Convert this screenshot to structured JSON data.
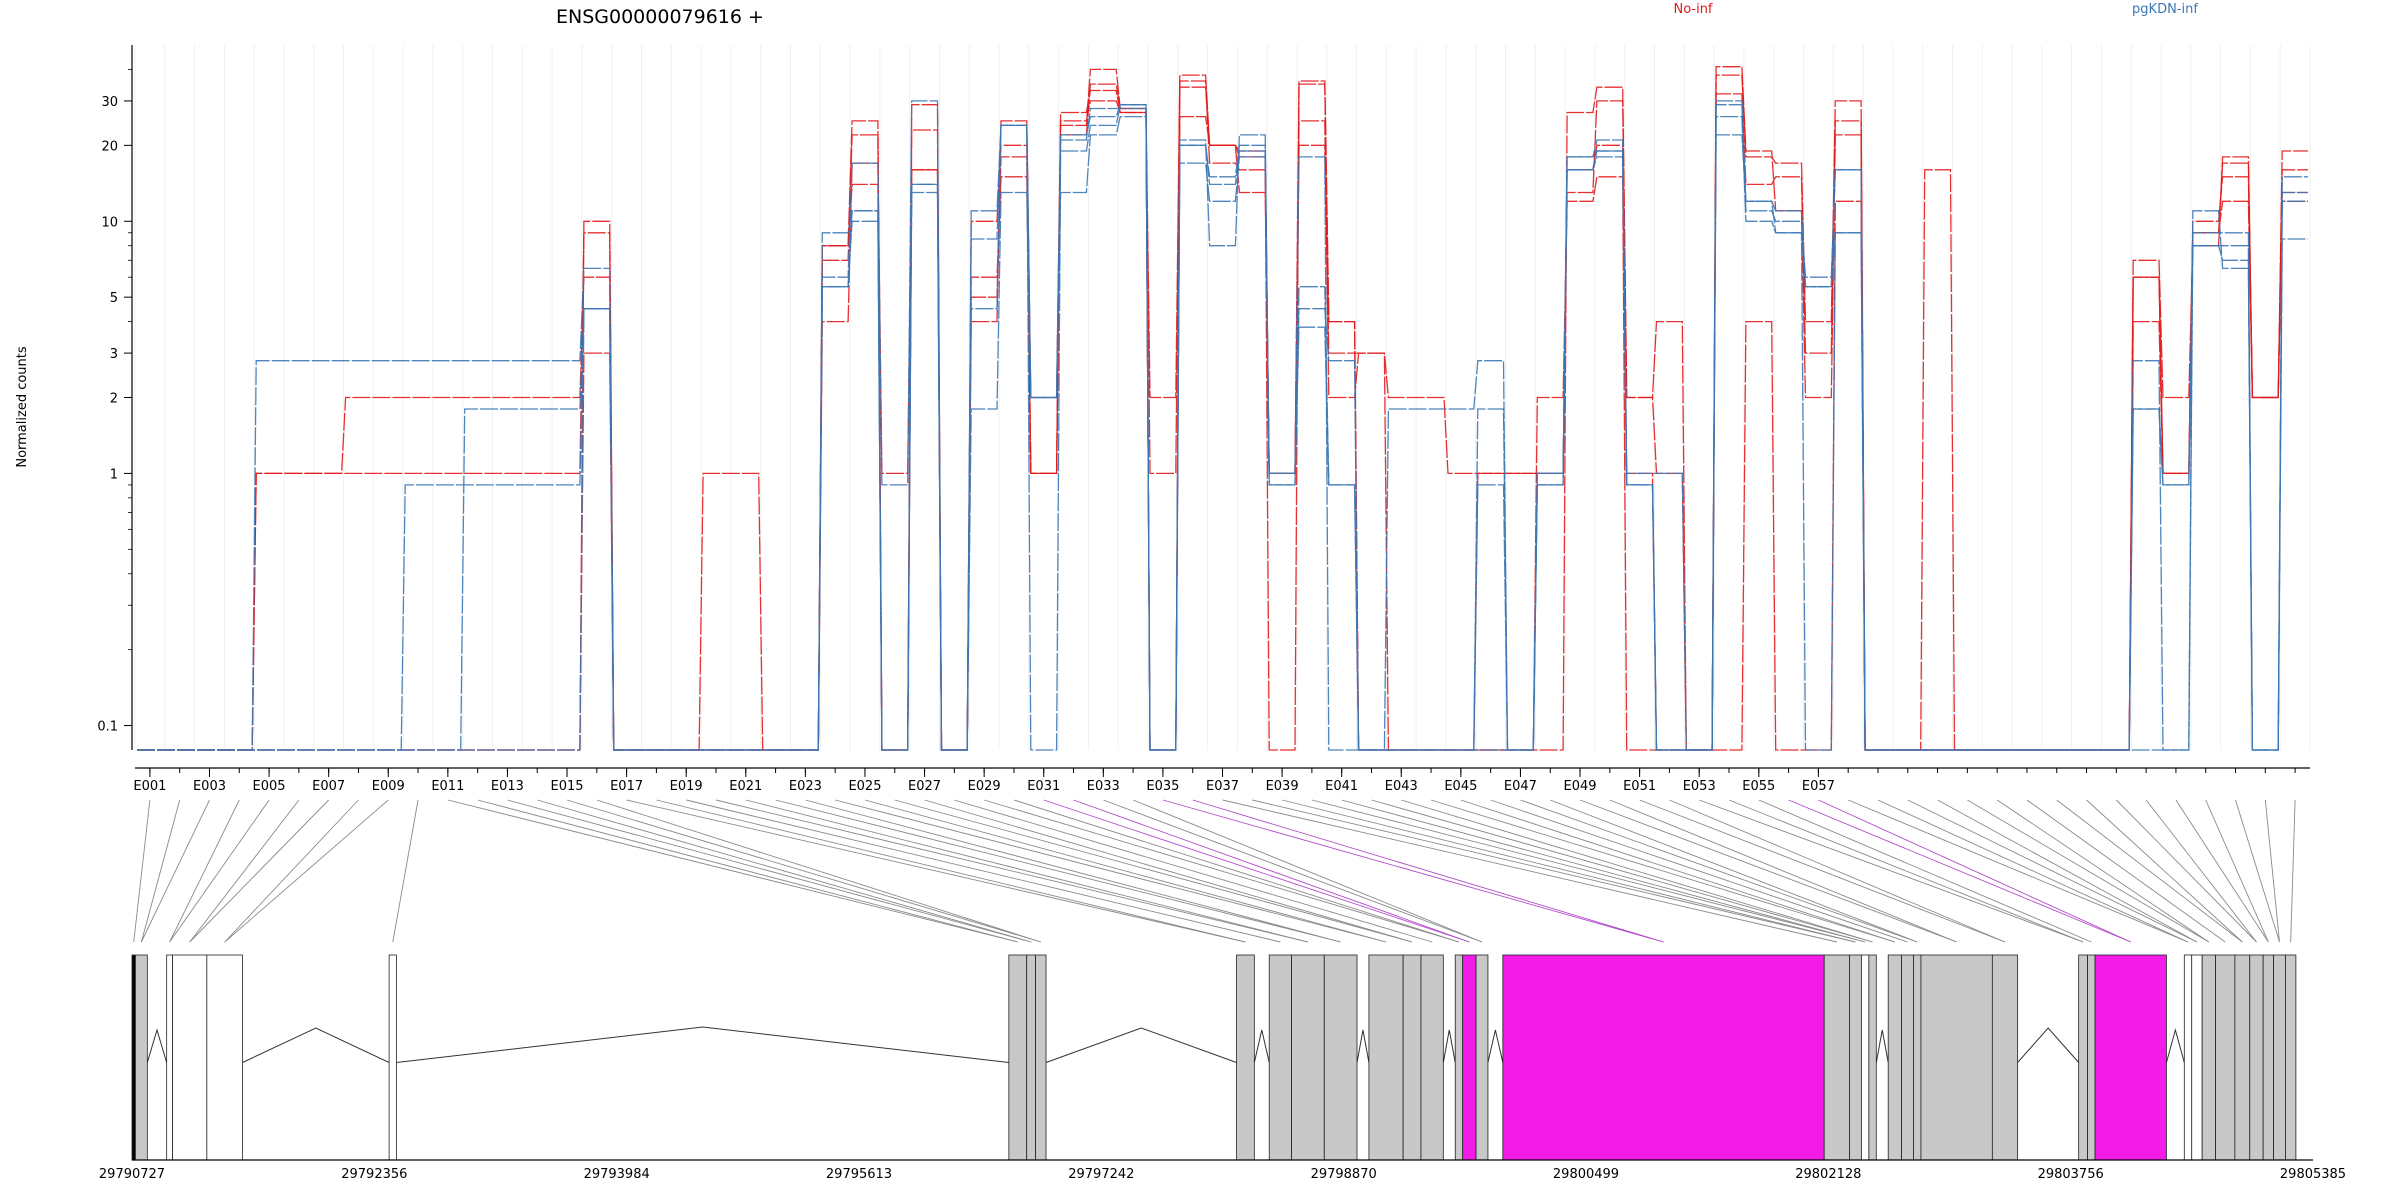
{
  "chart_data": {
    "type": "line",
    "title": "ENSG00000079616 +",
    "ylabel": "Normalized counts",
    "xlabel": "",
    "y_scale": "log",
    "ylim": [
      0.08,
      50
    ],
    "y_ticks": [
      0.1,
      1,
      2,
      3,
      5,
      10,
      20,
      30
    ],
    "y_tick_labels": [
      "0.1",
      "1",
      "2",
      "3",
      "5",
      "10",
      "20",
      "30"
    ],
    "legend_placement": "top",
    "grid": true,
    "exon_labels": [
      "E001",
      "E003",
      "E005",
      "E007",
      "E009",
      "E011",
      "E013",
      "E015",
      "E017",
      "E019",
      "E021",
      "E023",
      "E025",
      "E027",
      "E029",
      "E031",
      "E033",
      "E035",
      "E037",
      "E039",
      "E041",
      "E043",
      "E045",
      "E047",
      "E049",
      "E051",
      "E053",
      "E055",
      "E057"
    ],
    "series": [
      {
        "name": "No-inf",
        "color": "#e31a1c",
        "samples": [
          [
            0.08,
            0.08,
            0.08,
            0.08,
            1,
            1,
            1,
            1,
            1,
            1,
            1,
            1,
            1,
            1,
            1,
            9,
            0.08,
            0.08,
            0.08,
            1,
            1,
            0.08,
            0.08,
            8,
            25,
            0.08,
            29,
            0.08,
            10,
            20,
            1,
            24,
            40,
            28,
            0.08,
            34,
            20,
            18,
            0.08,
            35,
            4,
            0.08,
            0.08,
            0.08,
            0.08,
            0.08,
            0.08,
            2,
            12,
            15,
            0.08,
            0.08,
            0.08,
            0.08,
            4,
            0.08,
            0.08,
            12,
            0.08,
            0.08,
            16,
            0.08,
            0.08,
            0.08,
            0.08,
            0.08,
            0.08,
            6,
            1,
            9,
            12,
            2,
            16
          ],
          [
            0.08,
            0.08,
            0.08,
            0.08,
            1,
            1,
            1,
            2,
            2,
            2,
            2,
            2,
            2,
            2,
            2,
            6,
            0.08,
            0.08,
            0.08,
            0.08,
            0.08,
            0.08,
            0.08,
            7,
            22,
            0.08,
            23,
            0.08,
            5,
            18,
            1,
            22,
            35,
            28,
            1,
            38,
            20,
            13,
            1,
            20,
            3,
            3,
            2,
            2,
            1,
            1,
            1,
            1,
            13,
            30,
            2,
            1,
            0.08,
            38,
            18,
            17,
            4,
            30,
            0.08,
            0.08,
            0.08,
            0.08,
            0.08,
            0.08,
            0.08,
            0.08,
            0.08,
            7,
            2,
            8,
            18,
            2,
            19
          ],
          [
            0.08,
            0.08,
            0.08,
            0.08,
            0.08,
            0.08,
            0.08,
            0.08,
            0.08,
            0.08,
            0.08,
            0.08,
            0.08,
            0.08,
            0.08,
            3,
            0.08,
            0.08,
            0.08,
            0.08,
            0.08,
            0.08,
            0.08,
            4,
            17,
            1,
            16,
            0.08,
            6,
            15,
            1,
            25,
            30,
            27,
            0.08,
            26,
            20,
            19,
            1,
            25,
            2,
            3,
            0.08,
            0.08,
            0.08,
            1,
            1,
            1,
            16,
            20,
            1,
            0.08,
            0.08,
            32,
            14,
            15,
            3,
            25,
            0.08,
            0.08,
            0.08,
            0.08,
            0.08,
            0.08,
            0.08,
            0.08,
            0.08,
            4,
            1,
            10,
            15,
            2,
            13
          ],
          [
            0.08,
            0.08,
            0.08,
            0.08,
            0.08,
            0.08,
            0.08,
            0.08,
            0.08,
            0.08,
            0.08,
            0.08,
            0.08,
            0.08,
            0.08,
            10,
            0.08,
            0.08,
            0.08,
            0.08,
            0.08,
            0.08,
            0.08,
            8,
            14,
            0.08,
            16,
            0.08,
            4,
            25,
            2,
            27,
            33,
            27,
            2,
            36,
            17,
            16,
            1,
            36,
            4,
            0.08,
            0.08,
            0.08,
            0.08,
            0.08,
            0.08,
            0.08,
            27,
            34,
            2,
            4,
            0.08,
            41,
            19,
            11,
            2,
            22,
            0.08,
            0.08,
            0.08,
            0.08,
            0.08,
            0.08,
            0.08,
            0.08,
            0.08,
            6,
            1,
            9,
            17,
            2,
            12
          ]
        ]
      },
      {
        "name": "pgKDN-inf",
        "color": "#3c78b5",
        "samples": [
          [
            0.08,
            0.08,
            0.08,
            0.08,
            2.8,
            2.8,
            2.8,
            2.8,
            2.8,
            2.8,
            2.8,
            2.8,
            2.8,
            2.8,
            2.8,
            6.5,
            0.08,
            0.08,
            0.08,
            0.08,
            0.08,
            0.08,
            0.08,
            9,
            11,
            0.08,
            14,
            0.08,
            11,
            24,
            2,
            22,
            26,
            29,
            0.08,
            20,
            15,
            20,
            1,
            18,
            0.08,
            0.08,
            1.8,
            1.8,
            1.8,
            2.8,
            0.08,
            1,
            16,
            19,
            1,
            1,
            0.08,
            30,
            11,
            10,
            6,
            16,
            0.08,
            0.08,
            0.08,
            0.08,
            0.08,
            0.08,
            0.08,
            0.08,
            0.08,
            2.8,
            0.08,
            11,
            6.5,
            0.08,
            15
          ],
          [
            0.08,
            0.08,
            0.08,
            0.08,
            0.08,
            0.08,
            0.08,
            0.08,
            0.08,
            0.9,
            0.9,
            0.9,
            0.9,
            0.9,
            0.9,
            4.5,
            0.08,
            0.08,
            0.08,
            0.08,
            0.08,
            0.08,
            0.08,
            6,
            17,
            0.9,
            30,
            0.08,
            1.8,
            13,
            2,
            13,
            22,
            26,
            0.08,
            21,
            8,
            22,
            0.9,
            5.5,
            0.9,
            0.08,
            0.08,
            0.08,
            0.08,
            1.8,
            0.08,
            0.9,
            18,
            21,
            0.9,
            0.08,
            0.08,
            29,
            12,
            9,
            5.5,
            9,
            0.08,
            0.08,
            0.08,
            0.08,
            0.08,
            0.08,
            0.08,
            0.08,
            0.08,
            1.8,
            0.9,
            8,
            8,
            0.08,
            13
          ],
          [
            0.08,
            0.08,
            0.08,
            0.08,
            0.08,
            0.08,
            0.08,
            0.08,
            0.08,
            0.08,
            0.08,
            1.8,
            1.8,
            1.8,
            1.8,
            4.5,
            0.08,
            0.08,
            0.08,
            0.08,
            0.08,
            0.08,
            0.08,
            5.5,
            11,
            0.08,
            13,
            0.08,
            4.5,
            24,
            0.08,
            19,
            24,
            29,
            0.08,
            20,
            14,
            19,
            0.9,
            4.5,
            2.8,
            0.08,
            0.08,
            0.08,
            0.08,
            0.9,
            0.08,
            0.9,
            16,
            18,
            0.9,
            0.08,
            0.08,
            26,
            10,
            9,
            0.08,
            9,
            0.08,
            0.08,
            0.08,
            0.08,
            0.08,
            0.08,
            0.08,
            0.08,
            0.08,
            0.08,
            0.08,
            8,
            7,
            0.08,
            8.5
          ],
          [
            0.08,
            0.08,
            0.08,
            0.08,
            0.08,
            0.08,
            0.08,
            0.08,
            0.08,
            0.08,
            0.08,
            0.08,
            0.08,
            0.08,
            0.08,
            4.5,
            0.08,
            0.08,
            0.08,
            0.08,
            0.08,
            0.08,
            0.08,
            5.5,
            10,
            0.08,
            14,
            0.08,
            8.5,
            24,
            2,
            21,
            28,
            28,
            0.08,
            17,
            12,
            18,
            1,
            3.8,
            0.9,
            0.08,
            0.08,
            0.08,
            0.08,
            0.08,
            0.08,
            1,
            18,
            19,
            0.9,
            0.08,
            0.08,
            22,
            12,
            11,
            5.5,
            16,
            0.08,
            0.08,
            0.08,
            0.08,
            0.08,
            0.08,
            0.08,
            0.08,
            0.08,
            1.8,
            0.9,
            9,
            9,
            0.08,
            12
          ]
        ]
      }
    ],
    "genomic_axis": {
      "range": [
        29790727,
        29805385
      ],
      "tick_labels": [
        "29790727",
        "29792356",
        "29793984",
        "29795613",
        "29797242",
        "29798870",
        "29800499",
        "29802128",
        "29803756",
        "29805385"
      ]
    },
    "exons_model": [
      [
        29790727,
        29790750,
        "#000000"
      ],
      [
        29790750,
        29790830,
        "#c8c8c8"
      ],
      [
        29790960,
        29791000,
        "#ffffff"
      ],
      [
        29791000,
        29791230,
        "#ffffff"
      ],
      [
        29791230,
        29791470,
        "#ffffff"
      ],
      [
        29792455,
        29792505,
        "#ffffff"
      ],
      [
        29796620,
        29796740,
        "#c8c8c8"
      ],
      [
        29796740,
        29796800,
        "#c8c8c8"
      ],
      [
        29796800,
        29796870,
        "#c8c8c8"
      ],
      [
        29798150,
        29798270,
        "#c8c8c8"
      ],
      [
        29798370,
        29798520,
        "#c8c8c8"
      ],
      [
        29798520,
        29798740,
        "#c8c8c8"
      ],
      [
        29798740,
        29798960,
        "#c8c8c8"
      ],
      [
        29799040,
        29799270,
        "#c8c8c8"
      ],
      [
        29799270,
        29799390,
        "#c8c8c8"
      ],
      [
        29799390,
        29799540,
        "#c8c8c8"
      ],
      [
        29799620,
        29799670,
        "#c8c8c8"
      ],
      [
        29799670,
        29799760,
        "#f21be8"
      ],
      [
        29799760,
        29799840,
        "#c8c8c8"
      ],
      [
        29799940,
        29802100,
        "#f21be8"
      ],
      [
        29802100,
        29802270,
        "#c8c8c8"
      ],
      [
        29802270,
        29802350,
        "#c8c8c8"
      ],
      [
        29802350,
        29802400,
        "#ffffff"
      ],
      [
        29802400,
        29802450,
        "#c8c8c8"
      ],
      [
        29802530,
        29802620,
        "#c8c8c8"
      ],
      [
        29802620,
        29802700,
        "#c8c8c8"
      ],
      [
        29802700,
        29802750,
        "#c8c8c8"
      ],
      [
        29802750,
        29803230,
        "#c8c8c8"
      ],
      [
        29803230,
        29803400,
        "#c8c8c8"
      ],
      [
        29803810,
        29803870,
        "#c8c8c8"
      ],
      [
        29803870,
        29803920,
        "#c8c8c8"
      ],
      [
        29803920,
        29804400,
        "#f21be8"
      ],
      [
        29804520,
        29804570,
        "#ffffff"
      ],
      [
        29804570,
        29804640,
        "#ffffff"
      ],
      [
        29804640,
        29804730,
        "#c8c8c8"
      ],
      [
        29804730,
        29804860,
        "#c8c8c8"
      ],
      [
        29804860,
        29804960,
        "#c8c8c8"
      ],
      [
        29804960,
        29805050,
        "#c8c8c8"
      ],
      [
        29805050,
        29805120,
        "#c8c8c8"
      ],
      [
        29805120,
        29805200,
        "#c8c8c8"
      ],
      [
        29805200,
        29805270,
        "#c8c8c8"
      ]
    ]
  }
}
